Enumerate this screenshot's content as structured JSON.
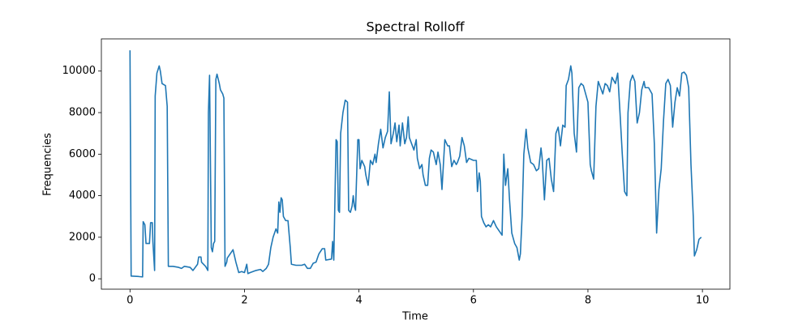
{
  "chart_data": {
    "type": "line",
    "title": "Spectral Rolloff",
    "x_label": "Time",
    "y_label": "Frequencies",
    "color": "#1f77b4",
    "xlim": [
      -0.5,
      10.48
    ],
    "ylim": [
      -500,
      11550
    ],
    "xticks": [
      0,
      2,
      4,
      6,
      8,
      10
    ],
    "yticks": [
      0,
      2000,
      4000,
      6000,
      8000,
      10000
    ],
    "grid": false,
    "x": [
      0.0,
      0.02,
      0.15,
      0.22,
      0.23,
      0.26,
      0.28,
      0.34,
      0.36,
      0.39,
      0.4,
      0.43,
      0.44,
      0.47,
      0.51,
      0.53,
      0.56,
      0.62,
      0.65,
      0.67,
      0.75,
      0.85,
      0.9,
      0.95,
      1.05,
      1.1,
      1.18,
      1.2,
      1.24,
      1.25,
      1.32,
      1.36,
      1.37,
      1.39,
      1.42,
      1.44,
      1.46,
      1.48,
      1.5,
      1.52,
      1.56,
      1.58,
      1.62,
      1.64,
      1.66,
      1.69,
      1.7,
      1.75,
      1.8,
      1.85,
      1.9,
      1.95,
      2.0,
      2.04,
      2.06,
      2.1,
      2.2,
      2.28,
      2.32,
      2.38,
      2.42,
      2.46,
      2.5,
      2.55,
      2.58,
      2.6,
      2.62,
      2.64,
      2.66,
      2.68,
      2.72,
      2.76,
      2.8,
      2.82,
      2.9,
      3.0,
      3.05,
      3.1,
      3.15,
      3.2,
      3.25,
      3.3,
      3.36,
      3.4,
      3.42,
      3.52,
      3.54,
      3.56,
      3.6,
      3.62,
      3.64,
      3.66,
      3.68,
      3.72,
      3.76,
      3.8,
      3.82,
      3.85,
      3.88,
      3.9,
      3.92,
      3.94,
      3.98,
      4.0,
      4.02,
      4.05,
      4.1,
      4.12,
      4.16,
      4.2,
      4.24,
      4.28,
      4.3,
      4.34,
      4.38,
      4.42,
      4.46,
      4.5,
      4.53,
      4.56,
      4.6,
      4.63,
      4.66,
      4.7,
      4.72,
      4.76,
      4.8,
      4.83,
      4.86,
      4.88,
      4.92,
      4.96,
      5.0,
      5.02,
      5.06,
      5.1,
      5.12,
      5.16,
      5.2,
      5.23,
      5.26,
      5.3,
      5.35,
      5.38,
      5.42,
      5.45,
      5.5,
      5.55,
      5.58,
      5.62,
      5.66,
      5.7,
      5.72,
      5.76,
      5.8,
      5.84,
      5.88,
      5.92,
      6.0,
      6.05,
      6.07,
      6.1,
      6.12,
      6.14,
      6.18,
      6.22,
      6.26,
      6.3,
      6.35,
      6.4,
      6.45,
      6.5,
      6.53,
      6.56,
      6.6,
      6.63,
      6.67,
      6.72,
      6.76,
      6.8,
      6.82,
      6.85,
      6.88,
      6.92,
      6.95,
      7.0,
      7.05,
      7.1,
      7.14,
      7.18,
      7.2,
      7.24,
      7.28,
      7.32,
      7.36,
      7.4,
      7.44,
      7.48,
      7.52,
      7.56,
      7.6,
      7.62,
      7.66,
      7.7,
      7.72,
      7.76,
      7.8,
      7.84,
      7.88,
      7.92,
      7.96,
      8.0,
      8.04,
      8.06,
      8.1,
      8.14,
      8.18,
      8.22,
      8.26,
      8.3,
      8.34,
      8.38,
      8.42,
      8.46,
      8.48,
      8.52,
      8.56,
      8.6,
      8.64,
      8.68,
      8.7,
      8.74,
      8.78,
      8.82,
      8.86,
      8.9,
      8.94,
      8.98,
      9.0,
      9.06,
      9.12,
      9.16,
      9.2,
      9.24,
      9.28,
      9.32,
      9.36,
      9.4,
      9.44,
      9.48,
      9.52,
      9.56,
      9.6,
      9.64,
      9.68,
      9.72,
      9.76,
      9.8,
      9.84,
      9.86,
      9.9,
      9.94,
      9.98
    ],
    "values": [
      11000,
      130,
      110,
      90,
      2750,
      2600,
      1700,
      1700,
      2700,
      2700,
      1800,
      400,
      8800,
      9900,
      10250,
      10000,
      9400,
      9300,
      8300,
      600,
      600,
      550,
      500,
      600,
      550,
      400,
      700,
      1050,
      1050,
      800,
      600,
      400,
      8000,
      9800,
      1500,
      1300,
      1700,
      1800,
      9600,
      9850,
      9400,
      9100,
      8900,
      8700,
      600,
      800,
      1000,
      1200,
      1400,
      800,
      300,
      350,
      300,
      700,
      250,
      300,
      400,
      450,
      350,
      500,
      700,
      1500,
      2000,
      2400,
      2200,
      3700,
      3200,
      3900,
      3800,
      3000,
      2800,
      2800,
      1500,
      700,
      650,
      650,
      700,
      500,
      500,
      750,
      800,
      1200,
      1450,
      1450,
      900,
      950,
      1800,
      900,
      6700,
      6600,
      3300,
      3200,
      7000,
      8000,
      8600,
      8500,
      3300,
      3200,
      3500,
      4000,
      3500,
      3300,
      6700,
      6700,
      5300,
      5700,
      5400,
      5000,
      4500,
      5700,
      5500,
      6000,
      5600,
      6500,
      7200,
      6300,
      6800,
      7100,
      9000,
      6500,
      7000,
      7500,
      6600,
      7400,
      6400,
      7500,
      6500,
      6800,
      7800,
      6800,
      6500,
      6200,
      6700,
      5800,
      5300,
      5500,
      5000,
      4500,
      4500,
      5800,
      6200,
      6100,
      5500,
      6100,
      5500,
      4300,
      6700,
      6400,
      6400,
      5400,
      5700,
      5500,
      5600,
      5900,
      6800,
      6400,
      5600,
      5800,
      5700,
      5700,
      4200,
      5100,
      4700,
      3000,
      2700,
      2500,
      2600,
      2500,
      2800,
      2500,
      2300,
      2100,
      6000,
      4500,
      5300,
      3800,
      2200,
      1700,
      1500,
      900,
      1200,
      3000,
      6000,
      7200,
      6300,
      5600,
      5500,
      5200,
      5300,
      6300,
      5800,
      3800,
      5700,
      5800,
      4800,
      4200,
      7000,
      7300,
      6400,
      7400,
      7300,
      9300,
      9600,
      10250,
      9900,
      7000,
      6100,
      9200,
      9400,
      9300,
      8900,
      8500,
      5500,
      5200,
      4800,
      8300,
      9500,
      9200,
      8900,
      9400,
      9300,
      9000,
      9700,
      9500,
      9400,
      9900,
      8000,
      6000,
      4200,
      4000,
      8000,
      9500,
      9800,
      9500,
      7500,
      8000,
      9100,
      9500,
      9200,
      9200,
      8900,
      6500,
      2200,
      4300,
      5300,
      7600,
      9400,
      9600,
      9300,
      7300,
      8500,
      9200,
      8800,
      9900,
      9950,
      9800,
      9200,
      5500,
      3000,
      1100,
      1400,
      1900,
      2000
    ]
  }
}
